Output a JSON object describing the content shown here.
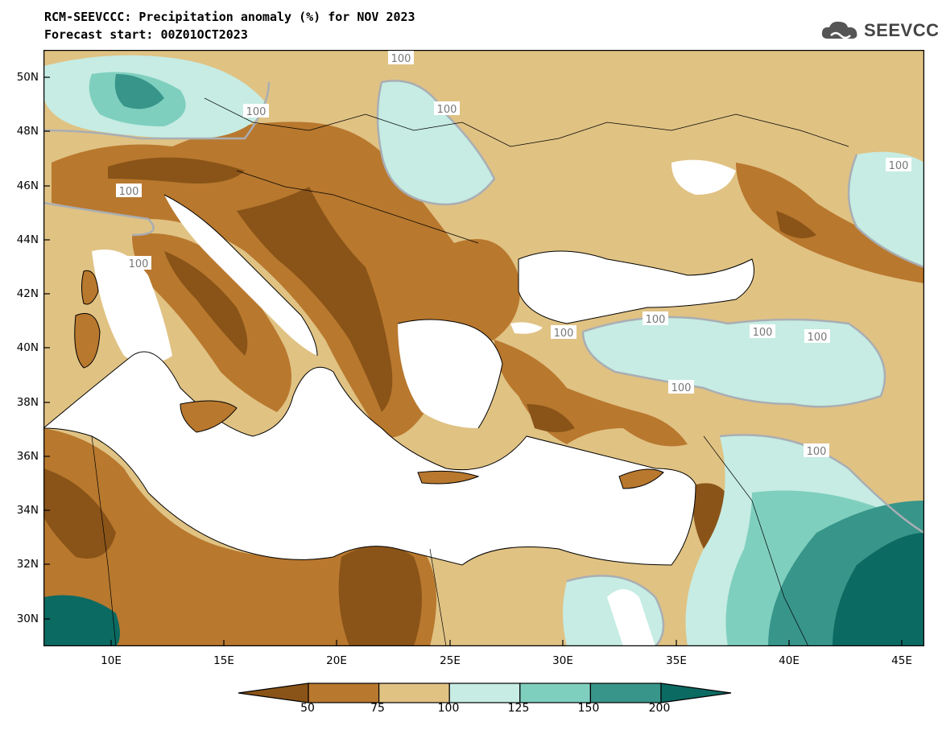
{
  "header": {
    "title_line1": "RCM-SEEVCCC: Precipitation anomaly (%) for NOV 2023",
    "title_line2": "Forecast start: 00Z01OCT2023",
    "logo_text": "SEEVCCC"
  },
  "map": {
    "latitude_labels": [
      "50N",
      "48N",
      "46N",
      "44N",
      "42N",
      "40N",
      "38N",
      "36N",
      "34N",
      "32N",
      "30N"
    ],
    "longitude_labels": [
      "10E",
      "15E",
      "20E",
      "25E",
      "30E",
      "35E",
      "40E",
      "45E"
    ],
    "contour_labels": [
      "100",
      "100",
      "100",
      "100",
      "100",
      "100",
      "100",
      "100",
      "100",
      "100",
      "100",
      "100"
    ]
  },
  "colorbar": {
    "labels": [
      "50",
      "75",
      "100",
      "125",
      "150",
      "200"
    ],
    "colors": [
      "#8a5418",
      "#b8782e",
      "#e0c283",
      "#c6ece3",
      "#7fcfbf",
      "#38958a",
      "#0b6a62"
    ]
  },
  "colors": {
    "sea": "#ffffff",
    "coast": "#000000",
    "contour_100": "#a9aeb4"
  }
}
